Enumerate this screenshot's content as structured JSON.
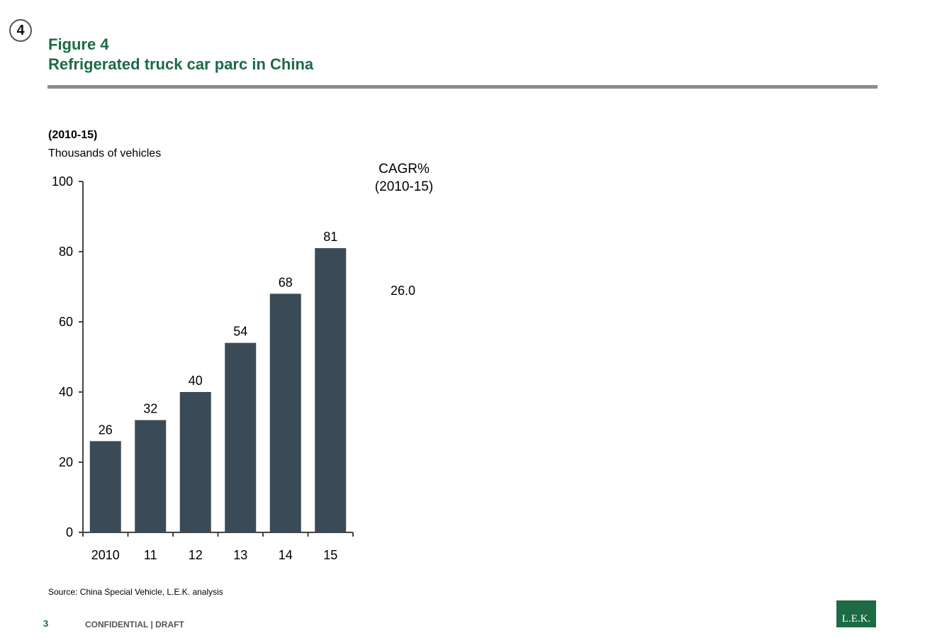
{
  "badge": "4",
  "header": {
    "figure_label": "Figure 4",
    "title": "Refrigerated truck car parc in China"
  },
  "chart_data": {
    "type": "bar",
    "title": "Refrigerated truck car parc in China",
    "subtitle": "(2010-15)",
    "ylabel": "Thousands of vehicles",
    "xlabel": "",
    "categories": [
      "2010",
      "11",
      "12",
      "13",
      "14",
      "15"
    ],
    "values": [
      26,
      32,
      40,
      54,
      68,
      81
    ],
    "value_labels": [
      "26",
      "32",
      "40",
      "54",
      "68",
      "81"
    ],
    "ylim": [
      0,
      100
    ],
    "yticks": [
      0,
      20,
      40,
      60,
      80,
      100
    ],
    "grid": false,
    "bar_color": "#3a4b57",
    "cagr": {
      "label": "CAGR%",
      "period": "(2010-15)",
      "value": "26.0"
    }
  },
  "footer": {
    "source": "Source:  China Special Vehicle, L.E.K. analysis",
    "page_number": "3",
    "text": "CONFIDENTIAL  |  DRAFT",
    "logo": "L.E.K."
  },
  "colors": {
    "accent": "#1c6b45",
    "rule": "#8c8c8c"
  }
}
